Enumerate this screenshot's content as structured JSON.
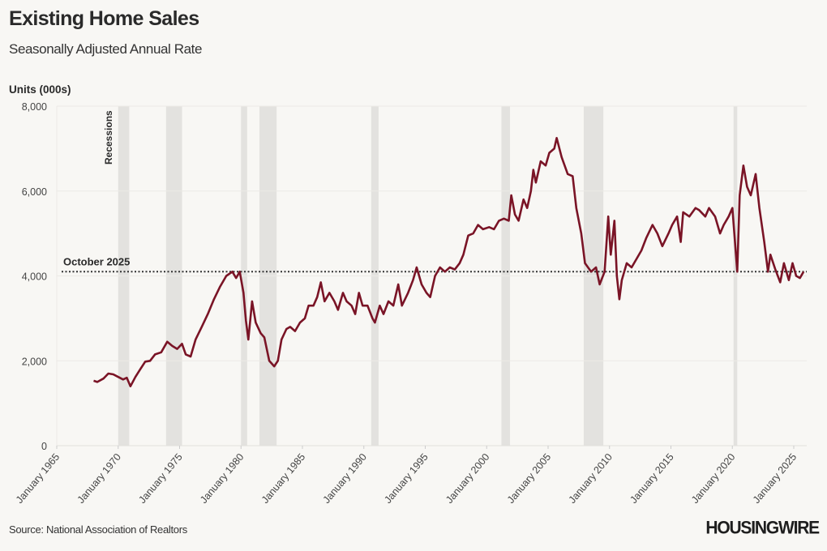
{
  "header": {
    "title": "Existing Home Sales",
    "subtitle": "Seasonally Adjusted Annual Rate"
  },
  "footer": {
    "source": "Source: National Association of Realtors",
    "logo": "HOUSINGWIRE"
  },
  "chart_data": {
    "type": "line",
    "title": "Existing Home Sales",
    "subtitle": "Seasonally Adjusted Annual Rate",
    "ylabel": "Units (000s)",
    "xlabel": "",
    "xlim": [
      1965,
      2026.1
    ],
    "ylim": [
      0,
      8000
    ],
    "grid": true,
    "yticks": [
      0,
      2000,
      4000,
      6000,
      8000
    ],
    "ytick_labels": [
      "0",
      "2,000",
      "4,000",
      "6,000",
      "8,000"
    ],
    "xticks": [
      1965,
      1970,
      1975,
      1980,
      1985,
      1990,
      1995,
      2000,
      2005,
      2010,
      2015,
      2020,
      2025
    ],
    "xtick_labels": [
      "January 1965",
      "January 1970",
      "January 1975",
      "January 1980",
      "January 1985",
      "January 1990",
      "January 1995",
      "January 2000",
      "January 2005",
      "January 2010",
      "January 2015",
      "January 2020",
      "January 2025"
    ],
    "line_color": "#7a1426",
    "recession_color": "#e3e2df",
    "recessions_label": "Recessions",
    "recessions": [
      [
        1970.0,
        1970.9
      ],
      [
        1973.9,
        1975.2
      ],
      [
        1980.0,
        1980.5
      ],
      [
        1981.5,
        1982.9
      ],
      [
        1990.6,
        1991.2
      ],
      [
        2001.2,
        2001.9
      ],
      [
        2007.9,
        2009.5
      ],
      [
        2020.1,
        2020.4
      ]
    ],
    "reference_line": {
      "label": "October 2025",
      "value": 4100,
      "style": "dotted"
    },
    "series": [
      {
        "x": [
          1968.0,
          1968.3,
          1968.8,
          1969.2,
          1969.6,
          1970.0,
          1970.4,
          1970.7,
          1971.0,
          1971.4,
          1971.8,
          1972.2,
          1972.6,
          1973.0,
          1973.5,
          1974.0,
          1974.4,
          1974.8,
          1975.2,
          1975.5,
          1975.9,
          1976.3,
          1976.8,
          1977.3,
          1977.8,
          1978.3,
          1978.8,
          1979.3,
          1979.6,
          1979.9,
          1980.2,
          1980.4,
          1980.6,
          1980.9,
          1981.2,
          1981.6,
          1981.9,
          1982.3,
          1982.7,
          1983.0,
          1983.3,
          1983.7,
          1984.0,
          1984.4,
          1984.8,
          1985.2,
          1985.5,
          1985.9,
          1986.2,
          1986.5,
          1986.8,
          1987.2,
          1987.6,
          1987.9,
          1988.3,
          1988.6,
          1989.0,
          1989.3,
          1989.6,
          1989.9,
          1990.3,
          1990.7,
          1990.9,
          1991.3,
          1991.6,
          1992.0,
          1992.4,
          1992.8,
          1993.1,
          1993.6,
          1994.0,
          1994.3,
          1994.7,
          1995.1,
          1995.4,
          1995.8,
          1996.2,
          1996.6,
          1997.0,
          1997.4,
          1997.8,
          1998.1,
          1998.5,
          1998.9,
          1999.3,
          1999.7,
          2000.2,
          2000.6,
          2001.0,
          2001.4,
          2001.8,
          2002.0,
          2002.3,
          2002.6,
          2003.0,
          2003.3,
          2003.6,
          2003.8,
          2004.0,
          2004.4,
          2004.8,
          2005.1,
          2005.5,
          2005.7,
          2006.1,
          2006.6,
          2007.0,
          2007.3,
          2007.7,
          2008.0,
          2008.5,
          2008.9,
          2009.2,
          2009.6,
          2009.9,
          2010.1,
          2010.4,
          2010.6,
          2010.8,
          2011.0,
          2011.4,
          2011.8,
          2012.2,
          2012.6,
          2013.0,
          2013.5,
          2013.9,
          2014.3,
          2014.8,
          2015.1,
          2015.5,
          2015.8,
          2016.0,
          2016.5,
          2017.0,
          2017.3,
          2017.8,
          2018.1,
          2018.6,
          2019.0,
          2019.3,
          2019.7,
          2020.0,
          2020.4,
          2020.6,
          2020.9,
          2021.2,
          2021.5,
          2021.9,
          2022.2,
          2022.6,
          2022.9,
          2023.1,
          2023.5,
          2023.9,
          2024.2,
          2024.6,
          2024.9,
          2025.2,
          2025.5,
          2025.8
        ],
        "y": [
          1530,
          1500,
          1580,
          1700,
          1680,
          1620,
          1560,
          1600,
          1400,
          1620,
          1800,
          1980,
          2000,
          2150,
          2200,
          2450,
          2350,
          2280,
          2400,
          2150,
          2100,
          2500,
          2800,
          3100,
          3450,
          3750,
          4000,
          4100,
          3950,
          4100,
          3600,
          2950,
          2500,
          3400,
          2900,
          2650,
          2550,
          2000,
          1870,
          2000,
          2500,
          2750,
          2800,
          2700,
          2900,
          3000,
          3300,
          3300,
          3500,
          3850,
          3400,
          3600,
          3400,
          3200,
          3600,
          3400,
          3300,
          3100,
          3600,
          3300,
          3300,
          3000,
          2900,
          3300,
          3100,
          3400,
          3300,
          3800,
          3300,
          3600,
          3900,
          4200,
          3800,
          3600,
          3500,
          4000,
          4200,
          4100,
          4200,
          4150,
          4300,
          4500,
          4950,
          5000,
          5200,
          5100,
          5150,
          5100,
          5300,
          5350,
          5300,
          5900,
          5450,
          5300,
          5800,
          5600,
          6000,
          6500,
          6200,
          6700,
          6600,
          6900,
          7000,
          7250,
          6800,
          6400,
          6350,
          5600,
          5000,
          4300,
          4100,
          4200,
          3800,
          4100,
          5400,
          4500,
          5300,
          4000,
          3450,
          3900,
          4300,
          4200,
          4400,
          4600,
          4900,
          5200,
          5000,
          4700,
          5000,
          5200,
          5400,
          4800,
          5500,
          5400,
          5600,
          5550,
          5400,
          5600,
          5400,
          5000,
          5200,
          5400,
          5600,
          4100,
          5900,
          6600,
          6100,
          5900,
          6400,
          5600,
          4800,
          4100,
          4500,
          4150,
          3850,
          4300,
          3900,
          4300,
          4000,
          3950,
          4100
        ]
      }
    ]
  }
}
